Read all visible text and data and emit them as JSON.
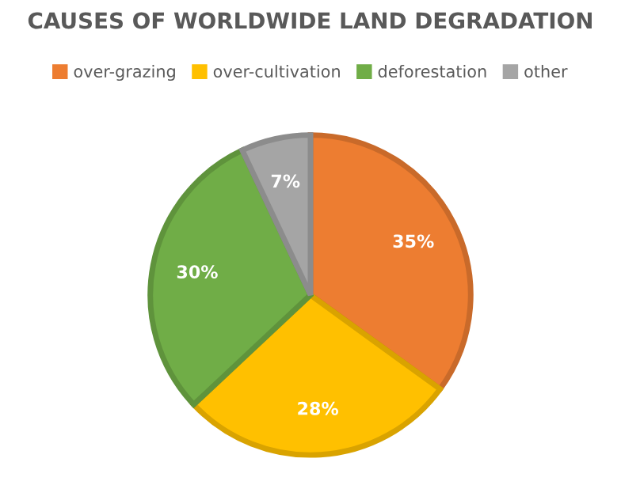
{
  "chart_data": {
    "type": "pie",
    "title": "CAUSES OF WORLDWIDE LAND DEGRADATION",
    "categories": [
      "over-grazing",
      "over-cultivation",
      "deforestation",
      "other"
    ],
    "values": [
      35,
      28,
      30,
      7
    ],
    "colors": [
      "#ed7d31",
      "#ffc000",
      "#70ad47",
      "#a5a5a5"
    ],
    "value_labels": [
      "35%",
      "28%",
      "30%",
      "7%"
    ],
    "legend": "top"
  }
}
